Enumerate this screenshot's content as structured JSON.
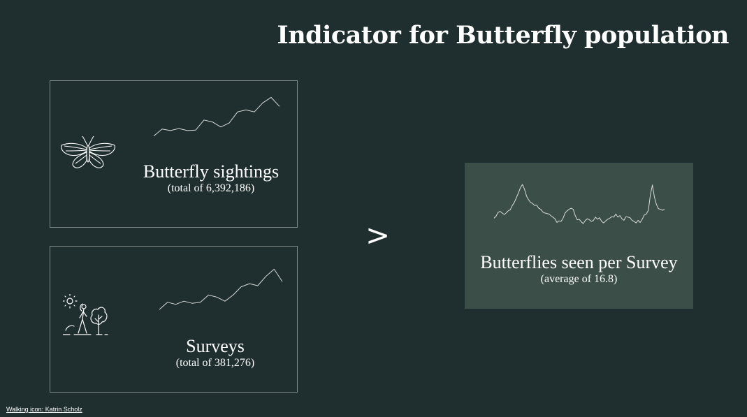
{
  "title": "Indicator for Butterfly population",
  "cards": {
    "butterfly": {
      "label": "Butterfly sightings",
      "sub": "(total of 6,392,186)",
      "icon": "butterfly-icon"
    },
    "surveys": {
      "label": "Surveys",
      "sub": "(total of 381,276)",
      "icon": "walking-person-tree-icon"
    },
    "result": {
      "label": "Butterflies seen per Survey",
      "sub": "(average of 16.8)"
    }
  },
  "operator": ">",
  "credit": "Walking icon: Katrin Scholz",
  "colors": {
    "background": "#1f2e2e",
    "result_card": "#3c4e48",
    "border": "#7e8a88",
    "line": "#d8dcda"
  },
  "chart_data": [
    {
      "type": "line",
      "name": "butterfly-sightings-trend",
      "title": "Butterfly sightings",
      "values": [
        10,
        24,
        21,
        25,
        21,
        22,
        42,
        38,
        28,
        36,
        58,
        62,
        58,
        76,
        87,
        69
      ],
      "ylim": [
        0,
        100
      ],
      "axes": false
    },
    {
      "type": "line",
      "name": "surveys-trend",
      "title": "Surveys",
      "values": [
        8,
        22,
        18,
        24,
        20,
        22,
        36,
        32,
        24,
        36,
        52,
        58,
        54,
        72,
        86,
        62
      ],
      "ylim": [
        0,
        100
      ],
      "axes": false
    },
    {
      "type": "line",
      "name": "butterflies-per-survey-trend",
      "title": "Butterflies seen per Survey",
      "values": [
        14,
        18,
        25,
        27,
        24,
        21,
        24,
        28,
        30,
        38,
        44,
        53,
        62,
        72,
        78,
        69,
        56,
        49,
        44,
        42,
        38,
        39,
        33,
        31,
        26,
        24,
        23,
        22,
        19,
        16,
        13,
        6,
        9,
        8,
        14,
        24,
        28,
        31,
        33,
        31,
        19,
        11,
        12,
        7,
        4,
        10,
        13,
        11,
        8,
        10,
        16,
        12,
        15,
        8,
        5,
        9,
        12,
        14,
        17,
        16,
        22,
        16,
        19,
        13,
        10,
        17,
        16,
        15,
        10,
        8,
        5,
        10,
        6,
        12,
        20,
        22,
        29,
        58,
        77,
        54,
        40,
        32,
        31,
        29,
        31
      ],
      "ylim": [
        0,
        90
      ],
      "axes": false
    }
  ]
}
